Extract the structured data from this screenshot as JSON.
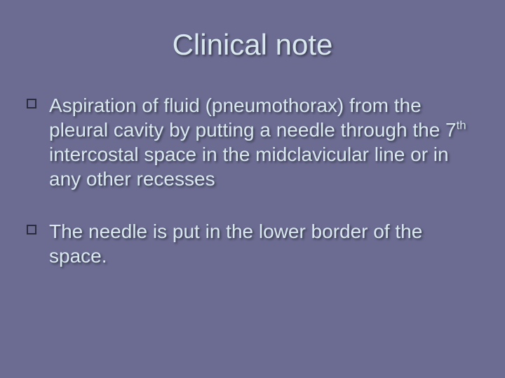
{
  "background_color": "#6c6c93",
  "text_color": "#d8e8ee",
  "title_fontsize": 42,
  "body_fontsize": 28,
  "bullet_marker_color": "#2b2b3f",
  "title": "Clinical note",
  "bullets": [
    {
      "pre": "Aspiration of fluid (pneumothorax) from the pleural cavity by putting a needle through the 7",
      "sup": "th",
      "post": " intercostal space in the midclavicular line or in any other recesses"
    },
    {
      "pre": "The needle is put in the lower border of the space.",
      "sup": "",
      "post": ""
    }
  ]
}
